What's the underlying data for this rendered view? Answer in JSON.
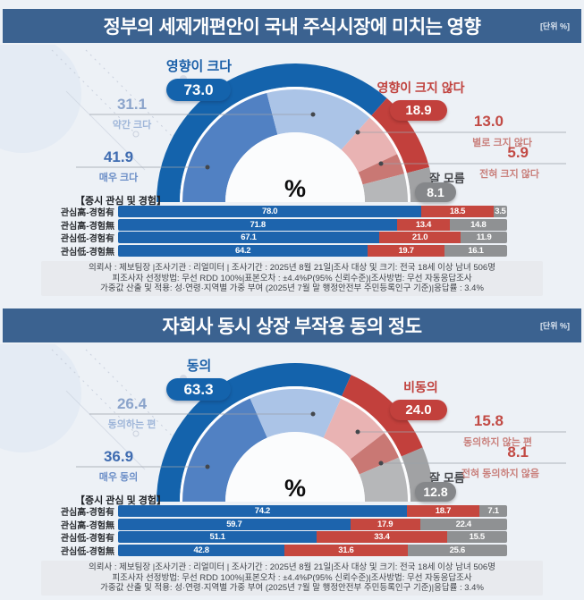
{
  "unit_label": "[단위 %]",
  "panels": [
    {
      "title": "정부의 세제개편안이 국내 주식시장에 미치는 영향",
      "bars_header": "【증시 관심 및 경험】"
    },
    {
      "title": "자회사 동시 상장 부작용 동의 정도",
      "bars_header": "【증시 관심 및 경험】"
    }
  ],
  "survey_note_lines": [
    "의뢰사 : 제보팀장 |조사기관 : 리얼미터 | 조사기간 : 2025년 8월 21일|조사 대상 및 크기: 전국 18세 이상 남녀 506명",
    "피조사자 선정방법: 무선 RDD 100%|표본오차 : ±4.4%P(95% 신뢰수준)|조사방법: 무선 자동응답조사",
    "가중값 산출 및 적용: 성·연령·지역별 가중 부여 (2025년 7월 말 행정안전부 주민등록인구 기준)|응답률 : 3.4%"
  ],
  "chart_data": [
    {
      "type": "pie",
      "variant": "half-donut-gauge",
      "title": "정부의 세제개편안이 국내 주식시장에 미치는 영향",
      "center_label": "%",
      "outer": [
        {
          "label": "영향이 크다",
          "value": 73.0,
          "display": "73.0",
          "color": "#1463ac"
        },
        {
          "label": "영향이 크지 않다",
          "value": 18.9,
          "display": "18.9",
          "color": "#c2403c"
        },
        {
          "label": "잘 모름",
          "value": 8.1,
          "display": "8.1",
          "color": "#a1a2a4"
        }
      ],
      "inner": [
        {
          "label": "매우 크다",
          "value": 41.9,
          "display": "41.9",
          "color": "#5181c3"
        },
        {
          "label": "약간 크다",
          "value": 31.1,
          "display": "31.1",
          "color": "#abc4e7"
        },
        {
          "label": "별로 크지 않다",
          "value": 13.0,
          "display": "13.0",
          "color": "#e9b3b3"
        },
        {
          "label": "전혀 크지 않다",
          "value": 5.9,
          "display": "5.9",
          "color": "#c97874"
        },
        {
          "label": "잘 모름",
          "value": 8.1,
          "display": "8.1",
          "color": "#b6b7b9"
        }
      ]
    },
    {
      "type": "bar",
      "variant": "stacked-horizontal",
      "title": "증시 관심 및 경험",
      "xlim": [
        0,
        100
      ],
      "categories": [
        "관심高-경험有",
        "관심高-경험無",
        "관심低-경험有",
        "관심低-경험無"
      ],
      "series": [
        {
          "name": "영향이 크다",
          "color": "#1d64ad",
          "values": [
            78.0,
            71.8,
            67.1,
            64.2
          ]
        },
        {
          "name": "영향이 크지 않다",
          "color": "#c5473f",
          "values": [
            18.5,
            13.4,
            21.0,
            19.7
          ]
        },
        {
          "name": "잘 모름",
          "color": "#8f9193",
          "values": [
            3.5,
            14.8,
            11.9,
            16.1
          ]
        }
      ]
    },
    {
      "type": "pie",
      "variant": "half-donut-gauge",
      "title": "자회사 동시 상장 부작용 동의 정도",
      "center_label": "%",
      "outer": [
        {
          "label": "동의",
          "value": 63.3,
          "display": "63.3",
          "color": "#1463ac"
        },
        {
          "label": "비동의",
          "value": 24.0,
          "display": "24.0",
          "color": "#c2403c"
        },
        {
          "label": "잘 모름",
          "value": 12.8,
          "display": "12.8",
          "color": "#a1a2a4"
        }
      ],
      "inner": [
        {
          "label": "매우 동의",
          "value": 36.9,
          "display": "36.9",
          "color": "#5181c3"
        },
        {
          "label": "동의하는 편",
          "value": 26.4,
          "display": "26.4",
          "color": "#abc4e7"
        },
        {
          "label": "동의하지 않는 편",
          "value": 15.8,
          "display": "15.8",
          "color": "#e9b3b3"
        },
        {
          "label": "전혀 동의하지 않음",
          "value": 8.1,
          "display": "8.1",
          "color": "#c97874"
        },
        {
          "label": "잘 모름",
          "value": 12.8,
          "display": "12.8",
          "color": "#b6b7b9"
        }
      ]
    },
    {
      "type": "bar",
      "variant": "stacked-horizontal",
      "title": "증시 관심 및 경험",
      "xlim": [
        0,
        100
      ],
      "categories": [
        "관심高-경험有",
        "관심高-경험無",
        "관심低-경험有",
        "관심低-경험無"
      ],
      "series": [
        {
          "name": "동의",
          "color": "#1d64ad",
          "values": [
            74.2,
            59.7,
            51.1,
            42.8
          ]
        },
        {
          "name": "비동의",
          "color": "#c5473f",
          "values": [
            18.7,
            17.9,
            33.4,
            31.6
          ]
        },
        {
          "name": "잘 모름",
          "color": "#8f9193",
          "values": [
            7.1,
            22.4,
            15.5,
            25.6
          ]
        }
      ]
    }
  ]
}
